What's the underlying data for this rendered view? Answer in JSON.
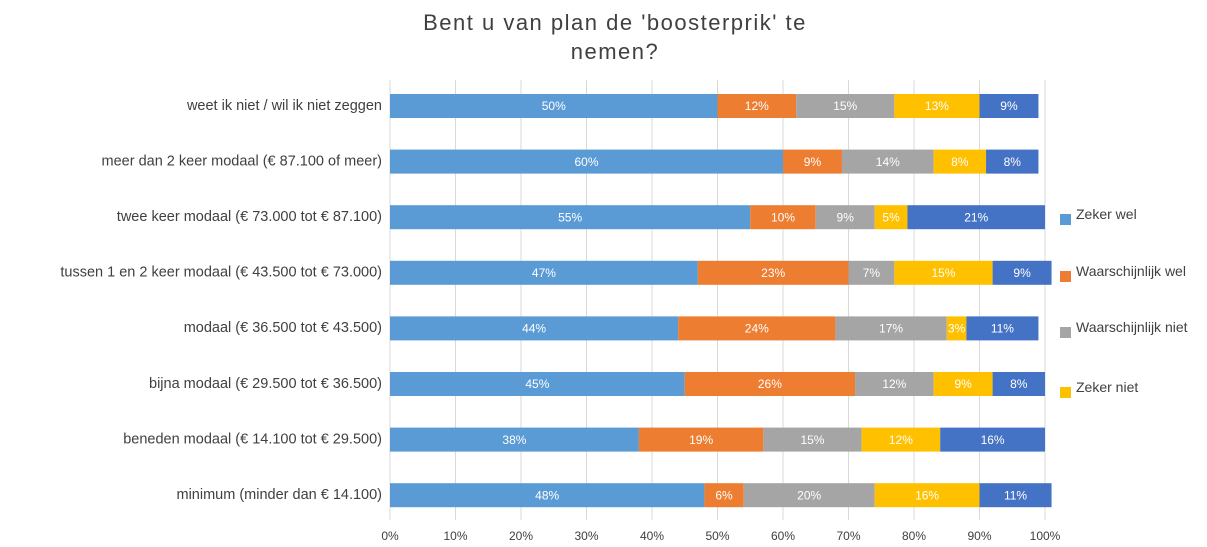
{
  "chart_data": {
    "type": "stacked-bar-horizontal",
    "title": "Bent u van plan de 'boosterprik' te nemen?",
    "categories": [
      "weet ik niet / wil ik niet zeggen",
      "meer dan 2 keer modaal (€ 87.100 of meer)",
      "twee keer modaal (€ 73.000 tot € 87.100)",
      "tussen 1 en 2 keer modaal (€ 43.500 tot € 73.000)",
      "modaal (€ 36.500 tot € 43.500)",
      "bijna modaal (€ 29.500 tot € 36.500)",
      "beneden modaal (€ 14.100 tot € 29.500)",
      "minimum (minder dan € 14.100)"
    ],
    "series": [
      {
        "name": "Zeker wel",
        "color": "#5b9bd5",
        "values": [
          50,
          60,
          55,
          47,
          44,
          45,
          38,
          48
        ],
        "value_labels": [
          "50%",
          "60%",
          "55%",
          "47%",
          "44%",
          "45%",
          "38%",
          "48%"
        ]
      },
      {
        "name": "Waarschijnlijk wel",
        "color": "#ed7d31",
        "values": [
          12,
          9,
          10,
          23,
          24,
          26,
          19,
          6
        ],
        "value_labels": [
          "12%",
          "9%",
          "10%",
          "23%",
          "24%",
          "26%",
          "19%",
          "6%"
        ]
      },
      {
        "name": "Waarschijnlijk niet",
        "color": "#a5a5a5",
        "values": [
          15,
          14,
          9,
          7,
          17,
          12,
          15,
          20
        ],
        "value_labels": [
          "15%",
          "14%",
          "9%",
          "7%",
          "17%",
          "12%",
          "15%",
          "20%"
        ]
      },
      {
        "name": "Zeker niet",
        "color": "#ffc000",
        "values": [
          13,
          8,
          5,
          15,
          3,
          9,
          12,
          16
        ],
        "value_labels": [
          "13%",
          "8%",
          "5%",
          "15%",
          "3%",
          "9%",
          "12%",
          "16%"
        ]
      },
      {
        "name": null,
        "color": "#4472c4",
        "values": [
          9,
          8,
          21,
          9,
          11,
          8,
          16,
          11
        ],
        "value_labels": [
          "9%",
          "8%",
          "21%",
          "9%",
          "11%",
          "8%",
          "16%",
          "11%"
        ]
      }
    ],
    "xlim": [
      0,
      100
    ],
    "xticks": [
      {
        "value": 0,
        "label": "0%"
      },
      {
        "value": 10,
        "label": "10%"
      },
      {
        "value": 20,
        "label": "20%"
      },
      {
        "value": 30,
        "label": "30%"
      },
      {
        "value": 40,
        "label": "40%"
      },
      {
        "value": 50,
        "label": "50%"
      },
      {
        "value": 60,
        "label": "60%"
      },
      {
        "value": 70,
        "label": "70%"
      },
      {
        "value": 80,
        "label": "80%"
      },
      {
        "value": 90,
        "label": "90%"
      },
      {
        "value": 100,
        "label": "100%"
      }
    ],
    "grid": true
  }
}
